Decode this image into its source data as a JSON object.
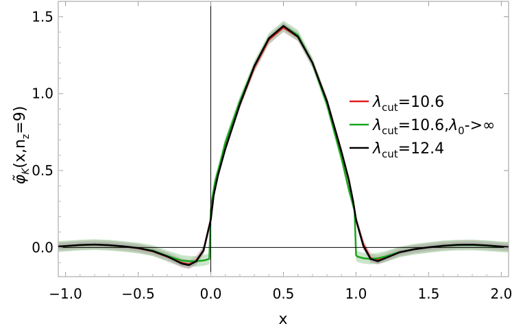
{
  "chart_data": {
    "type": "line",
    "xlabel": "x",
    "ylabel": "φ̃_K(x,n_z=9)",
    "ylabel_main": "φ̃",
    "ylabel_sub": "K",
    "ylabel_rest": "(x,n",
    "ylabel_sub2": "z",
    "ylabel_end": "=9)",
    "xlim": [
      -1.05,
      2.05
    ],
    "ylim": [
      -0.19,
      1.6
    ],
    "xticks": [
      {
        "value": -1.0,
        "label": "−1.0"
      },
      {
        "value": -0.5,
        "label": "−0.5"
      },
      {
        "value": 0.0,
        "label": "0.0"
      },
      {
        "value": 0.5,
        "label": "0.5"
      },
      {
        "value": 1.0,
        "label": "1.0"
      },
      {
        "value": 1.5,
        "label": "1.5"
      },
      {
        "value": 2.0,
        "label": "2.0"
      }
    ],
    "yticks": [
      {
        "value": 0.0,
        "label": "0.0"
      },
      {
        "value": 0.5,
        "label": "0.5"
      },
      {
        "value": 1.0,
        "label": "1.0"
      },
      {
        "value": 1.5,
        "label": "1.5"
      }
    ],
    "legend_position": "right",
    "series": [
      {
        "name": "λcut=10.6",
        "legend_main": "λ",
        "legend_sub": "cut",
        "legend_rest": "=10.6",
        "color": "#e41a1c",
        "band_color": "#c9a0a6",
        "x": [
          -1.05,
          -0.9,
          -0.8,
          -0.7,
          -0.6,
          -0.5,
          -0.4,
          -0.3,
          -0.2,
          -0.15,
          -0.1,
          -0.05,
          0.0,
          0.02,
          0.05,
          0.1,
          0.2,
          0.3,
          0.4,
          0.5,
          0.6,
          0.7,
          0.8,
          0.9,
          0.95,
          0.98,
          1.0,
          1.05,
          1.1,
          1.15,
          1.2,
          1.3,
          1.4,
          1.5,
          1.6,
          1.7,
          1.8,
          1.9,
          2.0,
          2.05
        ],
        "y": [
          0.005,
          0.015,
          0.018,
          0.014,
          0.006,
          -0.005,
          -0.025,
          -0.06,
          -0.1,
          -0.11,
          -0.085,
          -0.02,
          0.18,
          0.35,
          0.48,
          0.65,
          0.93,
          1.17,
          1.35,
          1.43,
          1.37,
          1.2,
          0.95,
          0.62,
          0.44,
          0.3,
          0.18,
          0.02,
          -0.07,
          -0.08,
          -0.065,
          -0.03,
          -0.012,
          0.0,
          0.01,
          0.016,
          0.017,
          0.012,
          0.005,
          0.002
        ],
        "band": 0.03
      },
      {
        "name": "λcut=10.6,λ0->∞",
        "legend_main": "λ",
        "legend_sub": "cut",
        "legend_rest": "=10.6,",
        "legend_main2": "λ",
        "legend_sub2": "0",
        "legend_rest2": "->∞",
        "color": "#17a51a",
        "band_color": "#9fcf9f",
        "x": [
          -1.05,
          -0.9,
          -0.8,
          -0.7,
          -0.6,
          -0.5,
          -0.4,
          -0.3,
          -0.2,
          -0.15,
          -0.1,
          -0.05,
          -0.01,
          0.0,
          0.01,
          0.03,
          0.06,
          0.1,
          0.2,
          0.3,
          0.4,
          0.5,
          0.6,
          0.7,
          0.8,
          0.9,
          0.95,
          0.99,
          1.0,
          1.01,
          1.05,
          1.1,
          1.15,
          1.2,
          1.3,
          1.4,
          1.5,
          1.6,
          1.7,
          1.8,
          1.9,
          2.0,
          2.05
        ],
        "y": [
          0.005,
          0.015,
          0.018,
          0.014,
          0.006,
          -0.004,
          -0.02,
          -0.055,
          -0.085,
          -0.09,
          -0.09,
          -0.085,
          -0.075,
          0.24,
          0.32,
          0.43,
          0.53,
          0.68,
          0.95,
          1.18,
          1.36,
          1.44,
          1.38,
          1.2,
          0.93,
          0.58,
          0.38,
          0.24,
          -0.05,
          -0.06,
          -0.07,
          -0.075,
          -0.07,
          -0.06,
          -0.03,
          -0.012,
          0.0,
          0.01,
          0.015,
          0.016,
          0.011,
          0.004,
          0.002
        ],
        "band": 0.035
      },
      {
        "name": "λcut=12.4",
        "legend_main": "λ",
        "legend_sub": "cut",
        "legend_rest": "=12.4",
        "color": "#000000",
        "band_color": "#a8a8a8",
        "x": [
          -1.05,
          -0.9,
          -0.8,
          -0.7,
          -0.6,
          -0.5,
          -0.4,
          -0.3,
          -0.2,
          -0.15,
          -0.1,
          -0.05,
          0.0,
          0.02,
          0.05,
          0.1,
          0.2,
          0.3,
          0.4,
          0.5,
          0.6,
          0.7,
          0.8,
          0.9,
          0.95,
          0.98,
          1.0,
          1.05,
          1.1,
          1.15,
          1.2,
          1.3,
          1.4,
          1.5,
          1.6,
          1.7,
          1.8,
          1.9,
          2.0,
          2.05
        ],
        "y": [
          0.006,
          0.016,
          0.019,
          0.015,
          0.007,
          -0.004,
          -0.024,
          -0.058,
          -0.105,
          -0.115,
          -0.09,
          -0.02,
          0.18,
          0.34,
          0.47,
          0.64,
          0.93,
          1.18,
          1.36,
          1.44,
          1.37,
          1.2,
          0.95,
          0.62,
          0.44,
          0.3,
          0.18,
          0.01,
          -0.075,
          -0.09,
          -0.07,
          -0.032,
          -0.012,
          0.001,
          0.011,
          0.017,
          0.018,
          0.013,
          0.006,
          0.003
        ],
        "band": 0.02
      }
    ]
  }
}
